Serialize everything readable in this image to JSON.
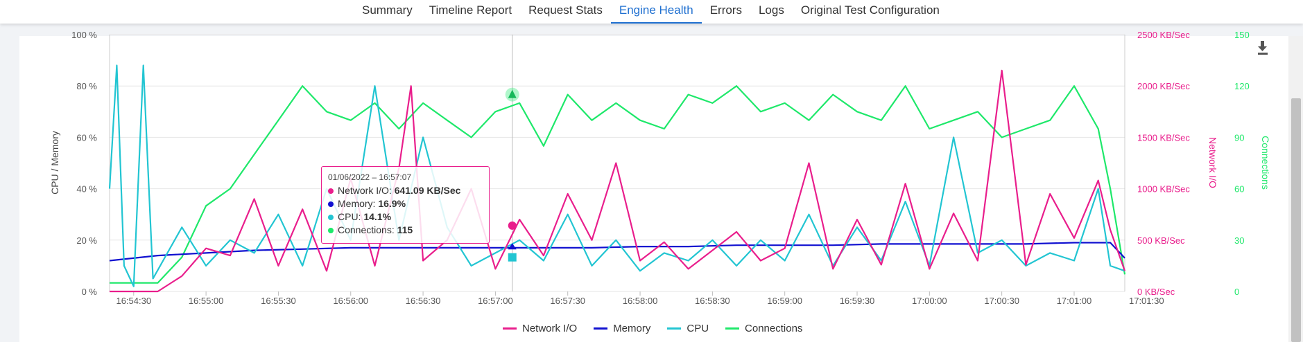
{
  "tabs": [
    {
      "label": "Summary"
    },
    {
      "label": "Timeline Report"
    },
    {
      "label": "Request Stats"
    },
    {
      "label": "Engine Health"
    },
    {
      "label": "Errors"
    },
    {
      "label": "Logs"
    },
    {
      "label": "Original Test Configuration"
    }
  ],
  "active_tab": "Engine Health",
  "colors": {
    "network": "#e91e8c",
    "memory": "#1010d0",
    "cpu": "#22c5d2",
    "connections": "#1ee86a",
    "accent": "#1e6fd0"
  },
  "tooltip": {
    "time": "01/06/2022 – 16:57:07",
    "rows": [
      {
        "label": "Network I/O: ",
        "value": "641.09 KB/Sec",
        "color": "#e91e8c"
      },
      {
        "label": "Memory: ",
        "value": "16.9%",
        "color": "#1010d0"
      },
      {
        "label": "CPU: ",
        "value": "14.1%",
        "color": "#22c5d2"
      },
      {
        "label": "Connections: ",
        "value": "115",
        "color": "#1ee86a"
      }
    ]
  },
  "icons": {
    "download": "download-icon"
  },
  "chart_data": {
    "type": "line",
    "x_ticks": [
      "16:54:30",
      "16:55:00",
      "16:55:30",
      "16:56:00",
      "16:56:30",
      "16:57:00",
      "16:57:30",
      "16:58:00",
      "16:58:30",
      "16:59:00",
      "16:59:30",
      "17:00:00",
      "17:00:30",
      "17:01:00",
      "17:01:30"
    ],
    "y_left": {
      "label": "CPU / Memory",
      "range": [
        0,
        100
      ],
      "ticks": [
        "0 %",
        "20 %",
        "40 %",
        "60 %",
        "80 %",
        "100 %"
      ]
    },
    "y_right_network": {
      "label": "Network I/O",
      "range": [
        0,
        2500
      ],
      "ticks": [
        "0 KB/Sec",
        "500 KB/Sec",
        "1000 KB/Sec",
        "1500 KB/Sec",
        "2000 KB/Sec",
        "2500 KB/Sec"
      ]
    },
    "y_right_connections": {
      "label": "Connections",
      "range": [
        0,
        150
      ],
      "ticks": [
        "0",
        "30",
        "60",
        "90",
        "120",
        "150"
      ]
    },
    "grid": true,
    "legend_position": "bottom",
    "x_range_seconds": [
      0,
      421
    ],
    "series": [
      {
        "name": "Network I/O",
        "axis": "network",
        "points": [
          [
            0,
            0
          ],
          [
            20,
            0
          ],
          [
            30,
            150
          ],
          [
            40,
            420
          ],
          [
            50,
            350
          ],
          [
            60,
            900
          ],
          [
            70,
            250
          ],
          [
            80,
            800
          ],
          [
            90,
            200
          ],
          [
            100,
            1100
          ],
          [
            110,
            250
          ],
          [
            120,
            1200
          ],
          [
            125,
            2000
          ],
          [
            130,
            300
          ],
          [
            140,
            500
          ],
          [
            150,
            1000
          ],
          [
            160,
            220
          ],
          [
            170,
            700
          ],
          [
            180,
            350
          ],
          [
            190,
            950
          ],
          [
            200,
            500
          ],
          [
            210,
            1250
          ],
          [
            220,
            300
          ],
          [
            230,
            480
          ],
          [
            240,
            220
          ],
          [
            250,
            400
          ],
          [
            260,
            580
          ],
          [
            270,
            300
          ],
          [
            280,
            420
          ],
          [
            290,
            1250
          ],
          [
            300,
            220
          ],
          [
            310,
            700
          ],
          [
            320,
            260
          ],
          [
            330,
            1050
          ],
          [
            340,
            220
          ],
          [
            350,
            760
          ],
          [
            360,
            300
          ],
          [
            370,
            2150
          ],
          [
            380,
            260
          ],
          [
            390,
            950
          ],
          [
            400,
            520
          ],
          [
            410,
            1080
          ],
          [
            415,
            600
          ],
          [
            421,
            200
          ]
        ]
      },
      {
        "name": "Memory",
        "axis": "left",
        "points": [
          [
            0,
            12
          ],
          [
            20,
            14
          ],
          [
            40,
            15
          ],
          [
            60,
            16
          ],
          [
            80,
            16.5
          ],
          [
            100,
            17
          ],
          [
            120,
            17
          ],
          [
            140,
            17
          ],
          [
            160,
            17
          ],
          [
            180,
            17
          ],
          [
            200,
            17
          ],
          [
            220,
            17.5
          ],
          [
            240,
            17.5
          ],
          [
            260,
            18
          ],
          [
            280,
            18
          ],
          [
            300,
            18
          ],
          [
            320,
            18.5
          ],
          [
            340,
            18.5
          ],
          [
            360,
            18.5
          ],
          [
            380,
            18.5
          ],
          [
            400,
            19
          ],
          [
            415,
            19
          ],
          [
            421,
            13
          ]
        ]
      },
      {
        "name": "CPU",
        "axis": "left",
        "points": [
          [
            0,
            40
          ],
          [
            3,
            88
          ],
          [
            6,
            10
          ],
          [
            10,
            2
          ],
          [
            14,
            88
          ],
          [
            18,
            5
          ],
          [
            30,
            25
          ],
          [
            40,
            10
          ],
          [
            50,
            20
          ],
          [
            60,
            15
          ],
          [
            70,
            30
          ],
          [
            80,
            10
          ],
          [
            90,
            40
          ],
          [
            100,
            20
          ],
          [
            110,
            80
          ],
          [
            120,
            20
          ],
          [
            130,
            60
          ],
          [
            140,
            25
          ],
          [
            150,
            10
          ],
          [
            160,
            15
          ],
          [
            170,
            20
          ],
          [
            180,
            12
          ],
          [
            190,
            30
          ],
          [
            200,
            10
          ],
          [
            210,
            20
          ],
          [
            220,
            8
          ],
          [
            230,
            15
          ],
          [
            240,
            12
          ],
          [
            250,
            20
          ],
          [
            260,
            10
          ],
          [
            270,
            20
          ],
          [
            280,
            12
          ],
          [
            290,
            30
          ],
          [
            300,
            10
          ],
          [
            310,
            25
          ],
          [
            320,
            12
          ],
          [
            330,
            35
          ],
          [
            340,
            10
          ],
          [
            350,
            60
          ],
          [
            360,
            15
          ],
          [
            370,
            20
          ],
          [
            380,
            10
          ],
          [
            390,
            15
          ],
          [
            400,
            12
          ],
          [
            410,
            40
          ],
          [
            415,
            10
          ],
          [
            421,
            8
          ]
        ]
      },
      {
        "name": "Connections",
        "axis": "connections",
        "points": [
          [
            0,
            5
          ],
          [
            20,
            5
          ],
          [
            30,
            20
          ],
          [
            40,
            50
          ],
          [
            50,
            60
          ],
          [
            60,
            80
          ],
          [
            70,
            100
          ],
          [
            80,
            120
          ],
          [
            90,
            105
          ],
          [
            100,
            100
          ],
          [
            110,
            110
          ],
          [
            120,
            95
          ],
          [
            130,
            110
          ],
          [
            140,
            100
          ],
          [
            150,
            90
          ],
          [
            160,
            105
          ],
          [
            170,
            110
          ],
          [
            180,
            85
          ],
          [
            190,
            115
          ],
          [
            200,
            100
          ],
          [
            210,
            110
          ],
          [
            220,
            100
          ],
          [
            230,
            95
          ],
          [
            240,
            115
          ],
          [
            250,
            110
          ],
          [
            260,
            120
          ],
          [
            270,
            105
          ],
          [
            280,
            110
          ],
          [
            290,
            100
          ],
          [
            300,
            115
          ],
          [
            310,
            105
          ],
          [
            320,
            100
          ],
          [
            330,
            120
          ],
          [
            340,
            95
          ],
          [
            350,
            100
          ],
          [
            360,
            105
          ],
          [
            370,
            90
          ],
          [
            380,
            95
          ],
          [
            390,
            100
          ],
          [
            400,
            120
          ],
          [
            410,
            95
          ],
          [
            415,
            60
          ],
          [
            421,
            10
          ]
        ]
      }
    ],
    "hover_x": 167
  }
}
